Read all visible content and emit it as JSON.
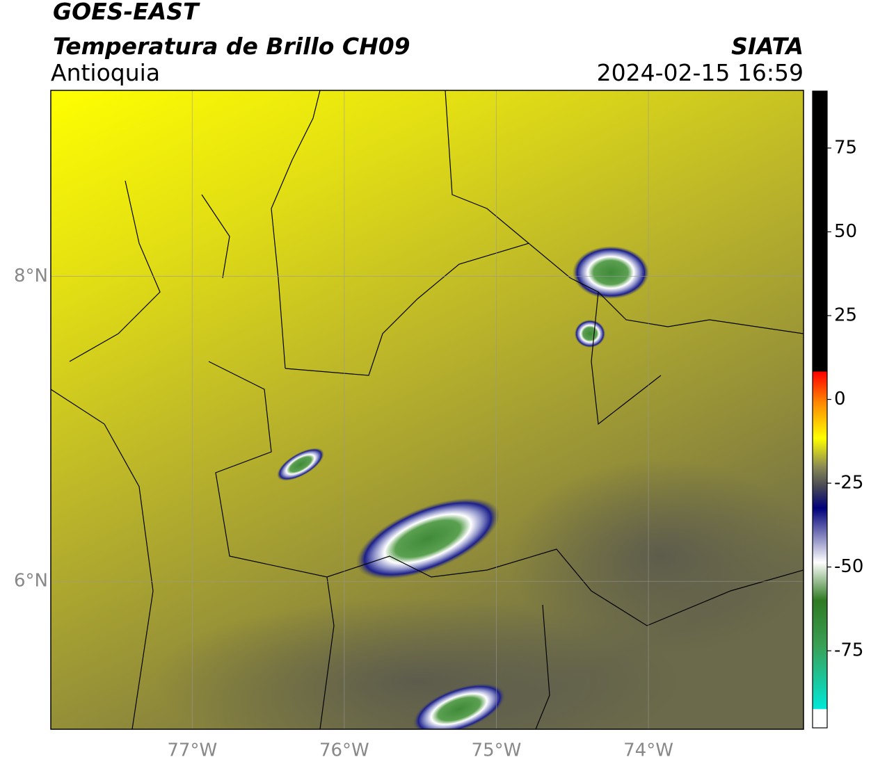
{
  "header": {
    "satellite": "GOES-EAST",
    "product": "Temperatura de Brillo CH09",
    "region": "Antioquia",
    "agency": "SIATA",
    "timestamp": "2024-02-15 16:59"
  },
  "map": {
    "xlim": [
      -77.93,
      -72.98
    ],
    "ylim": [
      5.03,
      9.22
    ],
    "xticks": [
      {
        "value": -77,
        "label": "77°W"
      },
      {
        "value": -76,
        "label": "76°W"
      },
      {
        "value": -75,
        "label": "75°W"
      },
      {
        "value": -74,
        "label": "74°W"
      }
    ],
    "yticks": [
      {
        "value": 6,
        "label": "6°N"
      },
      {
        "value": 8,
        "label": "8°N"
      }
    ],
    "grid": true
  },
  "colorbar": {
    "lim": [
      -98,
      92
    ],
    "ticks": [
      75,
      50,
      25,
      0,
      -25,
      -50,
      -75
    ]
  }
}
